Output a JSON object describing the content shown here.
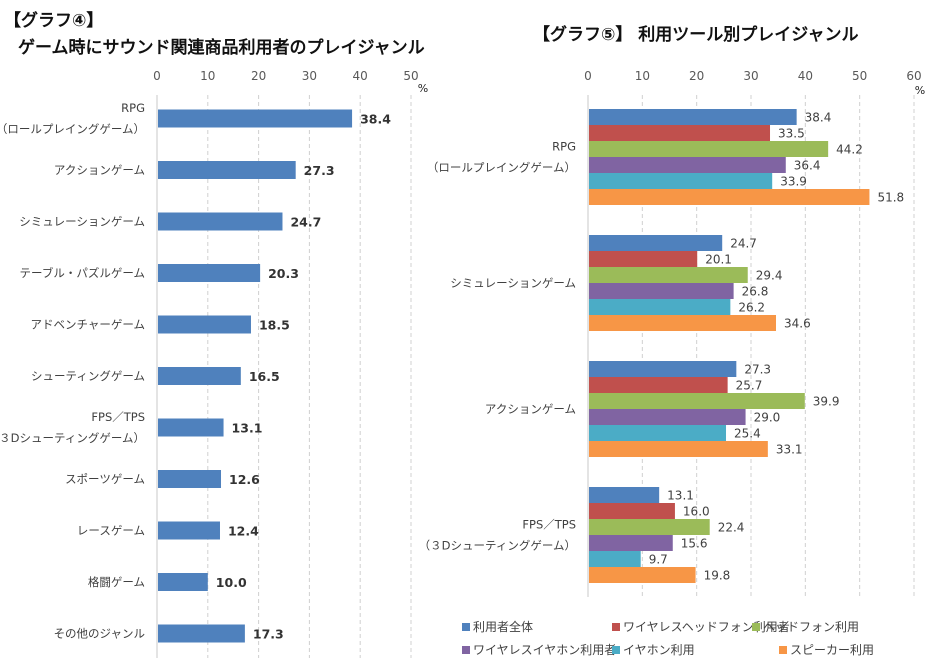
{
  "chart_data": [
    {
      "type": "bar",
      "orientation": "horizontal",
      "title_line1": "【グラフ④】",
      "title_line2": "ゲーム時にサウンド関連商品利用者のプレイジャンル",
      "xlabel": "%",
      "ylabel": "",
      "xlim": [
        0,
        50
      ],
      "xticks": [
        "0",
        "10",
        "20",
        "30",
        "40",
        "50"
      ],
      "grid": true,
      "categories": [
        "RPG\n（ロールプレイングゲーム）",
        "アクションゲーム",
        "シミュレーションゲーム",
        "テーブル・パズルゲーム",
        "アドベンチャーゲーム",
        "シューティングゲーム",
        "FPS／TPS\n（３Dシューティングゲーム）",
        "スポーツゲーム",
        "レースゲーム",
        "格闘ゲーム",
        "その他のジャンル"
      ],
      "values": [
        38.4,
        27.3,
        24.7,
        20.3,
        18.5,
        16.5,
        13.1,
        12.6,
        12.4,
        10.0,
        17.3
      ],
      "color": "#4f81bd"
    },
    {
      "type": "bar",
      "orientation": "horizontal",
      "title": "【グラフ⑤】 利用ツール別プレイジャンル",
      "xlabel": "%",
      "ylabel": "",
      "xlim": [
        0,
        60
      ],
      "xticks": [
        "0",
        "10",
        "20",
        "30",
        "40",
        "50",
        "60"
      ],
      "grid": true,
      "legend_position": "bottom",
      "categories": [
        "RPG\n（ロールプレイングゲーム）",
        "シミュレーションゲーム",
        "アクションゲーム",
        "FPS／TPS\n（３Dシューティングゲーム）"
      ],
      "series": [
        {
          "name": "利用者全体",
          "color": "#4f81bd",
          "values": [
            38.4,
            24.7,
            27.3,
            13.1
          ]
        },
        {
          "name": "ワイヤレスヘッドフォン利用者",
          "color": "#c0504d",
          "values": [
            33.5,
            20.1,
            25.7,
            16.0
          ]
        },
        {
          "name": "ヘッドフォン利用",
          "color": "#9bbb59",
          "values": [
            44.2,
            29.4,
            39.9,
            22.4
          ]
        },
        {
          "name": "ワイヤレスイヤホン利用者",
          "color": "#8064a2",
          "values": [
            36.4,
            26.8,
            29.0,
            15.6
          ]
        },
        {
          "name": "イヤホン利用",
          "color": "#4bacc6",
          "values": [
            33.9,
            26.2,
            25.4,
            9.7
          ]
        },
        {
          "name": "スピーカー利用",
          "color": "#f79646",
          "values": [
            51.8,
            34.6,
            33.1,
            19.8
          ]
        }
      ]
    }
  ]
}
